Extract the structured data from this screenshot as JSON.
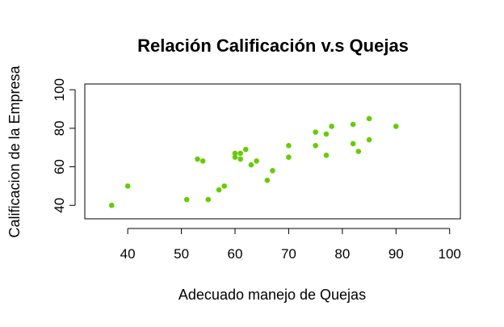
{
  "chart_data": {
    "type": "scatter",
    "title": "Relación Calificación v.s Quejas",
    "xlabel": "Adecuado manejo de Quejas",
    "ylabel": "Calificacion de la Empresa",
    "xlim": [
      32,
      102
    ],
    "ylim": [
      33,
      103
    ],
    "xticks": [
      40,
      50,
      60,
      70,
      80,
      90,
      100
    ],
    "yticks": [
      40,
      60,
      80,
      100
    ],
    "grid": false,
    "legend": "none",
    "point_color": "#66cc00",
    "points": [
      {
        "x": 37,
        "y": 40
      },
      {
        "x": 40,
        "y": 50
      },
      {
        "x": 51,
        "y": 43
      },
      {
        "x": 53,
        "y": 64
      },
      {
        "x": 54,
        "y": 63
      },
      {
        "x": 55,
        "y": 43
      },
      {
        "x": 57,
        "y": 48
      },
      {
        "x": 58,
        "y": 50
      },
      {
        "x": 60,
        "y": 65
      },
      {
        "x": 60,
        "y": 67
      },
      {
        "x": 61,
        "y": 64
      },
      {
        "x": 61,
        "y": 67
      },
      {
        "x": 62,
        "y": 69
      },
      {
        "x": 63,
        "y": 61
      },
      {
        "x": 64,
        "y": 63
      },
      {
        "x": 66,
        "y": 53
      },
      {
        "x": 67,
        "y": 58
      },
      {
        "x": 70,
        "y": 65
      },
      {
        "x": 70,
        "y": 71
      },
      {
        "x": 75,
        "y": 71
      },
      {
        "x": 75,
        "y": 78
      },
      {
        "x": 77,
        "y": 66
      },
      {
        "x": 77,
        "y": 77
      },
      {
        "x": 78,
        "y": 81
      },
      {
        "x": 82,
        "y": 72
      },
      {
        "x": 82,
        "y": 82
      },
      {
        "x": 83,
        "y": 68
      },
      {
        "x": 85,
        "y": 74
      },
      {
        "x": 85,
        "y": 85
      },
      {
        "x": 90,
        "y": 81
      }
    ]
  }
}
